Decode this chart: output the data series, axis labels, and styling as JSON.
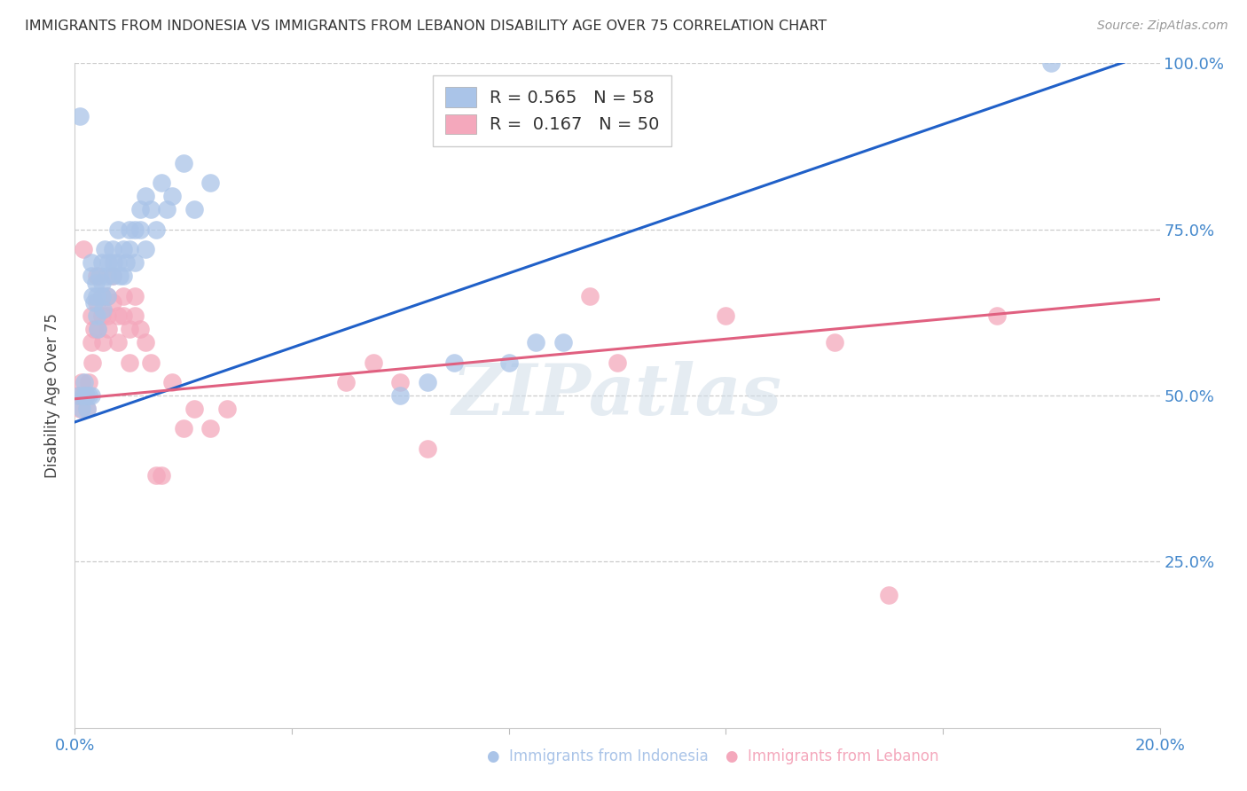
{
  "title": "IMMIGRANTS FROM INDONESIA VS IMMIGRANTS FROM LEBANON DISABILITY AGE OVER 75 CORRELATION CHART",
  "source": "Source: ZipAtlas.com",
  "ylabel": "Disability Age Over 75",
  "xlim": [
    0.0,
    0.2
  ],
  "ylim": [
    0.0,
    1.0
  ],
  "xtick_positions": [
    0.0,
    0.04,
    0.08,
    0.12,
    0.16,
    0.2
  ],
  "xtick_labels": [
    "0.0%",
    "",
    "",
    "",
    "",
    "20.0%"
  ],
  "ytick_positions": [
    0.0,
    0.25,
    0.5,
    0.75,
    1.0
  ],
  "ytick_labels": [
    "",
    "25.0%",
    "50.0%",
    "75.0%",
    "100.0%"
  ],
  "indonesia_R": 0.565,
  "indonesia_N": 58,
  "lebanon_R": 0.167,
  "lebanon_N": 50,
  "indonesia_color": "#aac4e8",
  "lebanon_color": "#f4a8bc",
  "indonesia_line_color": "#2060c8",
  "lebanon_line_color": "#e06080",
  "watermark": "ZIPatlas",
  "indo_line_x0": 0.0,
  "indo_line_y0": 0.46,
  "indo_line_x1": 0.2,
  "indo_line_y1": 1.02,
  "leb_line_x0": 0.0,
  "leb_line_y0": 0.495,
  "leb_line_x1": 0.2,
  "leb_line_y1": 0.645,
  "indo_x": [
    0.0008,
    0.001,
    0.0012,
    0.0015,
    0.0018,
    0.002,
    0.0022,
    0.0025,
    0.003,
    0.003,
    0.003,
    0.0032,
    0.0035,
    0.0038,
    0.004,
    0.004,
    0.0042,
    0.0045,
    0.005,
    0.005,
    0.005,
    0.0052,
    0.0055,
    0.006,
    0.006,
    0.0062,
    0.007,
    0.007,
    0.0072,
    0.008,
    0.008,
    0.0082,
    0.009,
    0.009,
    0.0095,
    0.01,
    0.01,
    0.011,
    0.011,
    0.012,
    0.012,
    0.013,
    0.013,
    0.014,
    0.015,
    0.016,
    0.017,
    0.018,
    0.02,
    0.022,
    0.025,
    0.06,
    0.065,
    0.07,
    0.08,
    0.085,
    0.09,
    0.18
  ],
  "indo_y": [
    0.5,
    0.92,
    0.48,
    0.5,
    0.52,
    0.5,
    0.48,
    0.5,
    0.7,
    0.68,
    0.5,
    0.65,
    0.64,
    0.67,
    0.65,
    0.62,
    0.6,
    0.68,
    0.7,
    0.67,
    0.65,
    0.63,
    0.72,
    0.68,
    0.65,
    0.7,
    0.72,
    0.68,
    0.7,
    0.75,
    0.7,
    0.68,
    0.72,
    0.68,
    0.7,
    0.75,
    0.72,
    0.75,
    0.7,
    0.78,
    0.75,
    0.8,
    0.72,
    0.78,
    0.75,
    0.82,
    0.78,
    0.8,
    0.85,
    0.78,
    0.82,
    0.5,
    0.52,
    0.55,
    0.55,
    0.58,
    0.58,
    1.0
  ],
  "leb_x": [
    0.0008,
    0.001,
    0.0012,
    0.0015,
    0.002,
    0.0022,
    0.0025,
    0.003,
    0.003,
    0.0032,
    0.0035,
    0.004,
    0.004,
    0.0042,
    0.005,
    0.005,
    0.0052,
    0.006,
    0.006,
    0.0062,
    0.007,
    0.007,
    0.008,
    0.008,
    0.009,
    0.009,
    0.01,
    0.01,
    0.011,
    0.011,
    0.012,
    0.013,
    0.014,
    0.015,
    0.016,
    0.018,
    0.02,
    0.022,
    0.025,
    0.028,
    0.05,
    0.055,
    0.06,
    0.065,
    0.095,
    0.1,
    0.12,
    0.14,
    0.15,
    0.17
  ],
  "leb_y": [
    0.5,
    0.48,
    0.52,
    0.72,
    0.5,
    0.48,
    0.52,
    0.62,
    0.58,
    0.55,
    0.6,
    0.68,
    0.64,
    0.6,
    0.65,
    0.62,
    0.58,
    0.65,
    0.62,
    0.6,
    0.68,
    0.64,
    0.62,
    0.58,
    0.65,
    0.62,
    0.6,
    0.55,
    0.65,
    0.62,
    0.6,
    0.58,
    0.55,
    0.38,
    0.38,
    0.52,
    0.45,
    0.48,
    0.45,
    0.48,
    0.52,
    0.55,
    0.52,
    0.42,
    0.65,
    0.55,
    0.62,
    0.58,
    0.2,
    0.62
  ]
}
